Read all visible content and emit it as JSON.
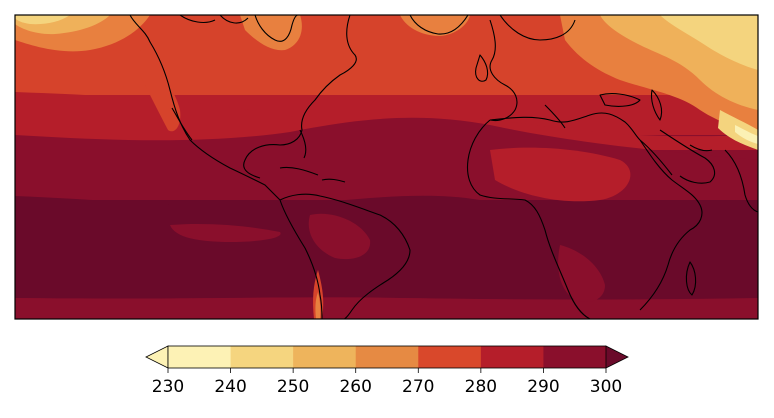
{
  "map": {
    "projection": "plate-carree",
    "extent": {
      "lon": [
        -140,
        40
      ],
      "lat": [
        -30,
        55
      ]
    },
    "field_units": "K",
    "palette": {
      "ocean_tropics": "#6a0a2a",
      "ocean_subtropics": "#8a0f2c",
      "mid_latitudes": "#b51e2a",
      "cool_band": "#d6432b",
      "cooler_band": "#e8803f",
      "cold_band": "#efb15a",
      "colder_band": "#f4d47e",
      "coldest_band": "#fbf1b4",
      "coastline": "#000000"
    }
  },
  "colorbar": {
    "levels": [
      230,
      240,
      250,
      260,
      270,
      280,
      290,
      300
    ],
    "tick_labels": [
      "230",
      "240",
      "250",
      "260",
      "270",
      "280",
      "290",
      "300"
    ],
    "colors": [
      "#fdf2b5",
      "#f5d57f",
      "#eeb45c",
      "#e68a43",
      "#d9482b",
      "#b51e2a",
      "#8a0f2c"
    ],
    "extend_low_color": "#fdf2b5",
    "extend_high_color": "#6a0a2a"
  }
}
